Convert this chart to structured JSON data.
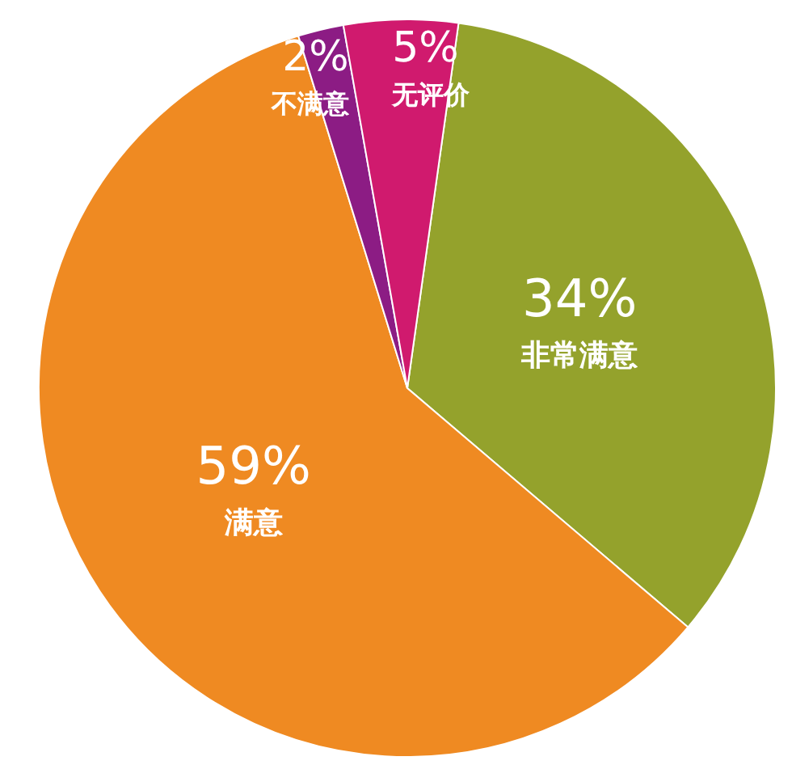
{
  "chart_data": {
    "type": "pie",
    "categories": [
      "非常满意",
      "满意",
      "不满意",
      "无评价"
    ],
    "values": [
      34,
      59,
      2,
      5
    ],
    "value_labels": [
      "34%",
      "59%",
      "2%",
      "5%"
    ],
    "colors": [
      "#94a22c",
      "#ef8a22",
      "#8c1c84",
      "#d01a6e"
    ]
  }
}
